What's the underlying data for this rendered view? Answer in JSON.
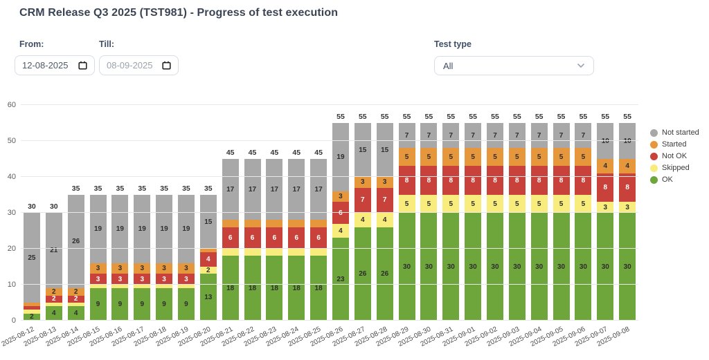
{
  "header": {
    "title": "CRM Release Q3 2025 (TST981) - Progress of test execution"
  },
  "filters": {
    "from": {
      "label": "From:",
      "value": "12-08-2025"
    },
    "till": {
      "label": "Till:",
      "value": "08-09-2025"
    },
    "test_type": {
      "label": "Test type",
      "value": "All"
    }
  },
  "chart_data": {
    "type": "bar",
    "stacked": true,
    "ylim": [
      0,
      60
    ],
    "yticks": [
      0,
      10,
      20,
      30,
      40,
      50,
      60
    ],
    "grid": true,
    "legend_position": "right",
    "legend_order": [
      "Not started",
      "Started",
      "Not OK",
      "Skipped",
      "OK"
    ],
    "series_meta": [
      {
        "name": "OK",
        "color": "#6fa63c",
        "label_color": "#2d2d2d"
      },
      {
        "name": "Skipped",
        "color": "#f8ec7d",
        "label_color": "#2d2d2d"
      },
      {
        "name": "Not OK",
        "color": "#c8413a",
        "label_color": "#ffffff"
      },
      {
        "name": "Started",
        "color": "#e6973b",
        "label_color": "#2d2d2d"
      },
      {
        "name": "Not started",
        "color": "#a8a8a8",
        "label_color": "#2d2d2d"
      }
    ],
    "categories": [
      "2025-08-12",
      "2025-08-13",
      "2025-08-14",
      "2025-08-15",
      "2025-08-16",
      "2025-08-17",
      "2025-08-18",
      "2025-08-19",
      "2025-08-20",
      "2025-08-21",
      "2025-08-22",
      "2025-08-23",
      "2025-08-24",
      "2025-08-25",
      "2025-08-26",
      "2025-08-27",
      "2025-08-28",
      "2025-08-29",
      "2025-08-30",
      "2025-08-31",
      "2025-09-01",
      "2025-09-02",
      "2025-09-03",
      "2025-09-04",
      "2025-09-05",
      "2025-09-06",
      "2025-09-07",
      "2025-09-08"
    ],
    "totals": [
      30,
      30,
      35,
      35,
      35,
      35,
      35,
      35,
      35,
      45,
      45,
      45,
      45,
      45,
      55,
      55,
      55,
      55,
      55,
      55,
      55,
      55,
      55,
      55,
      55,
      55,
      55,
      55
    ],
    "series": [
      {
        "name": "OK",
        "values": [
          2,
          4,
          4,
          9,
          9,
          9,
          9,
          9,
          13,
          18,
          18,
          18,
          18,
          18,
          23,
          26,
          26,
          30,
          30,
          30,
          30,
          30,
          30,
          30,
          30,
          30,
          30,
          30
        ],
        "labels": [
          "2",
          "4",
          "4",
          "9",
          "9",
          "9",
          "9",
          "9",
          "13",
          "18",
          "18",
          "18",
          "18",
          "18",
          "23",
          "26",
          "26",
          "30",
          "30",
          "30",
          "30",
          "30",
          "30",
          "30",
          "30",
          "30",
          "30",
          "30"
        ]
      },
      {
        "name": "Skipped",
        "values": [
          1,
          1,
          1,
          1,
          1,
          1,
          1,
          1,
          2,
          2,
          2,
          2,
          2,
          2,
          4,
          4,
          4,
          5,
          5,
          5,
          5,
          5,
          5,
          5,
          5,
          5,
          3,
          3
        ],
        "labels": [
          "",
          "",
          "",
          "",
          "",
          "",
          "",
          "",
          "2",
          "",
          "",
          "",
          "",
          "",
          "4",
          "4",
          "4",
          "5",
          "5",
          "5",
          "5",
          "5",
          "5",
          "5",
          "5",
          "5",
          "3",
          "3"
        ]
      },
      {
        "name": "Not OK",
        "values": [
          1,
          2,
          2,
          3,
          3,
          3,
          3,
          3,
          4,
          6,
          6,
          6,
          6,
          6,
          6,
          7,
          7,
          8,
          8,
          8,
          8,
          8,
          8,
          8,
          8,
          8,
          8,
          8
        ],
        "labels": [
          "",
          "2",
          "2",
          "3",
          "3",
          "3",
          "3",
          "3",
          "4",
          "6",
          "6",
          "6",
          "6",
          "6",
          "6",
          "7",
          "7",
          "8",
          "8",
          "8",
          "8",
          "8",
          "8",
          "8",
          "8",
          "8",
          "8",
          "8"
        ]
      },
      {
        "name": "Started",
        "values": [
          1,
          2,
          2,
          3,
          3,
          3,
          3,
          3,
          1,
          2,
          2,
          2,
          2,
          2,
          3,
          3,
          3,
          5,
          5,
          5,
          5,
          5,
          5,
          5,
          5,
          5,
          4,
          4
        ],
        "labels": [
          "",
          "2",
          "2",
          "3",
          "3",
          "3",
          "3",
          "3",
          "",
          "",
          "",
          "",
          "",
          "",
          "3",
          "3",
          "3",
          "5",
          "5",
          "5",
          "5",
          "5",
          "5",
          "5",
          "5",
          "5",
          "4",
          "4"
        ]
      },
      {
        "name": "Not started",
        "values": [
          25,
          21,
          26,
          19,
          19,
          19,
          19,
          19,
          15,
          17,
          17,
          17,
          17,
          17,
          19,
          15,
          15,
          7,
          7,
          7,
          7,
          7,
          7,
          7,
          7,
          7,
          10,
          10
        ],
        "labels": [
          "25",
          "21",
          "26",
          "19",
          "19",
          "19",
          "19",
          "19",
          "15",
          "17",
          "17",
          "17",
          "17",
          "17",
          "19",
          "15",
          "15",
          "7",
          "7",
          "7",
          "7",
          "7",
          "7",
          "7",
          "7",
          "7",
          "10",
          "10"
        ]
      }
    ]
  }
}
